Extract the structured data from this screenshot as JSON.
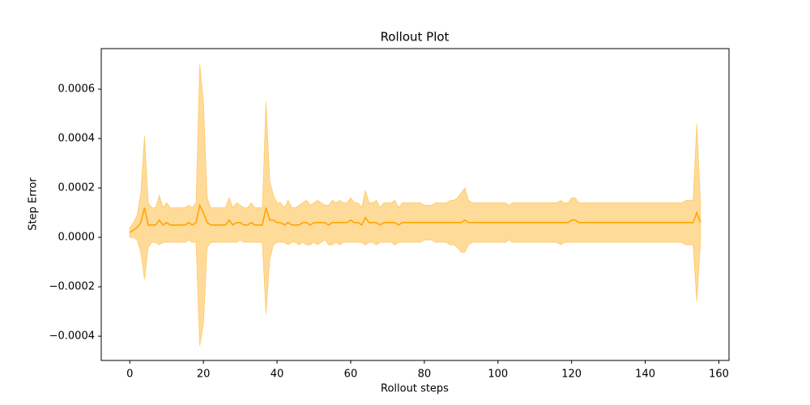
{
  "chart_data": {
    "type": "line",
    "title": "Rollout Plot",
    "xlabel": "Rollout steps",
    "ylabel": "Step Error",
    "color": "#ffa500",
    "band_alpha": 0.4,
    "x": [
      0,
      1,
      2,
      3,
      4,
      5,
      6,
      7,
      8,
      9,
      10,
      11,
      12,
      13,
      14,
      15,
      16,
      17,
      18,
      19,
      20,
      21,
      22,
      23,
      24,
      25,
      26,
      27,
      28,
      29,
      30,
      31,
      32,
      33,
      34,
      35,
      36,
      37,
      38,
      39,
      40,
      41,
      42,
      43,
      44,
      45,
      46,
      47,
      48,
      49,
      50,
      51,
      52,
      53,
      54,
      55,
      56,
      57,
      58,
      59,
      60,
      61,
      62,
      63,
      64,
      65,
      66,
      67,
      68,
      69,
      70,
      71,
      72,
      73,
      74,
      75,
      76,
      77,
      78,
      79,
      80,
      81,
      82,
      83,
      84,
      85,
      86,
      87,
      88,
      89,
      90,
      91,
      92,
      93,
      94,
      95,
      96,
      97,
      98,
      99,
      100,
      101,
      102,
      103,
      104,
      105,
      106,
      107,
      108,
      109,
      110,
      111,
      112,
      113,
      114,
      115,
      116,
      117,
      118,
      119,
      120,
      121,
      122,
      123,
      124,
      125,
      126,
      127,
      128,
      129,
      130,
      131,
      132,
      133,
      134,
      135,
      136,
      137,
      138,
      139,
      140,
      141,
      142,
      143,
      144,
      145,
      146,
      147,
      148,
      149,
      150,
      151,
      152,
      153,
      154,
      155
    ],
    "values": [
      2e-05,
      3e-05,
      4e-05,
      6e-05,
      0.00012,
      5e-05,
      5e-05,
      5e-05,
      7e-05,
      5e-05,
      6e-05,
      5e-05,
      5e-05,
      5e-05,
      5e-05,
      5e-05,
      6e-05,
      5e-05,
      6e-05,
      0.00013,
      0.0001,
      6e-05,
      5e-05,
      5e-05,
      5e-05,
      5e-05,
      5e-05,
      7e-05,
      5e-05,
      6e-05,
      6e-05,
      5e-05,
      5e-05,
      6e-05,
      5e-05,
      5e-05,
      5e-05,
      0.00012,
      7e-05,
      7e-05,
      6e-05,
      6e-05,
      5e-05,
      6e-05,
      5e-05,
      5e-05,
      5e-05,
      6e-05,
      6e-05,
      5e-05,
      6e-05,
      6e-05,
      6e-05,
      6e-05,
      5e-05,
      6e-05,
      6e-05,
      6e-05,
      6e-05,
      6e-05,
      7e-05,
      6e-05,
      6e-05,
      5e-05,
      8e-05,
      6e-05,
      6e-05,
      6e-05,
      5e-05,
      6e-05,
      6e-05,
      6e-05,
      6e-05,
      5e-05,
      6e-05,
      6e-05,
      6e-05,
      6e-05,
      6e-05,
      6e-05,
      6e-05,
      6e-05,
      6e-05,
      6e-05,
      6e-05,
      6e-05,
      6e-05,
      6e-05,
      6e-05,
      6e-05,
      6e-05,
      7e-05,
      6e-05,
      6e-05,
      6e-05,
      6e-05,
      6e-05,
      6e-05,
      6e-05,
      6e-05,
      6e-05,
      6e-05,
      6e-05,
      6e-05,
      6e-05,
      6e-05,
      6e-05,
      6e-05,
      6e-05,
      6e-05,
      6e-05,
      6e-05,
      6e-05,
      6e-05,
      6e-05,
      6e-05,
      6e-05,
      6e-05,
      6e-05,
      6e-05,
      7e-05,
      7e-05,
      6e-05,
      6e-05,
      6e-05,
      6e-05,
      6e-05,
      6e-05,
      6e-05,
      6e-05,
      6e-05,
      6e-05,
      6e-05,
      6e-05,
      6e-05,
      6e-05,
      6e-05,
      6e-05,
      6e-05,
      6e-05,
      6e-05,
      6e-05,
      6e-05,
      6e-05,
      6e-05,
      6e-05,
      6e-05,
      6e-05,
      6e-05,
      6e-05,
      6e-05,
      6e-05,
      6e-05,
      6e-05,
      0.0001,
      6e-05
    ],
    "std": [
      2e-05,
      3e-05,
      5e-05,
      0.00012,
      0.00029,
      9e-05,
      7e-05,
      7e-05,
      0.0001,
      7e-05,
      8e-05,
      7e-05,
      7e-05,
      7e-05,
      7e-05,
      7e-05,
      7e-05,
      7e-05,
      8e-05,
      0.00057,
      0.00045,
      0.0001,
      7e-05,
      7e-05,
      7e-05,
      7e-05,
      7e-05,
      9e-05,
      7e-05,
      8e-05,
      7e-05,
      7e-05,
      7e-05,
      8e-05,
      7e-05,
      7e-05,
      7e-05,
      0.00043,
      0.00016,
      0.0001,
      8e-05,
      8e-05,
      7e-05,
      9e-05,
      7e-05,
      7e-05,
      8e-05,
      8e-05,
      9e-05,
      8e-05,
      8e-05,
      9e-05,
      8e-05,
      7e-05,
      8e-05,
      9e-05,
      8e-05,
      9e-05,
      8e-05,
      8e-05,
      9e-05,
      8e-05,
      8e-05,
      7e-05,
      0.00011,
      8e-05,
      8e-05,
      9e-05,
      7e-05,
      8e-05,
      8e-05,
      8e-05,
      9e-05,
      7e-05,
      8e-05,
      8e-05,
      8e-05,
      8e-05,
      8e-05,
      8e-05,
      7e-05,
      7e-05,
      7e-05,
      8e-05,
      8e-05,
      8e-05,
      8e-05,
      9e-05,
      9e-05,
      0.0001,
      0.00012,
      0.00013,
      9e-05,
      8e-05,
      8e-05,
      8e-05,
      8e-05,
      8e-05,
      8e-05,
      8e-05,
      8e-05,
      8e-05,
      8e-05,
      7e-05,
      8e-05,
      8e-05,
      8e-05,
      8e-05,
      8e-05,
      8e-05,
      8e-05,
      8e-05,
      8e-05,
      8e-05,
      8e-05,
      8e-05,
      8e-05,
      9e-05,
      8e-05,
      8e-05,
      9e-05,
      9e-05,
      8e-05,
      8e-05,
      8e-05,
      8e-05,
      8e-05,
      8e-05,
      8e-05,
      8e-05,
      8e-05,
      8e-05,
      8e-05,
      8e-05,
      8e-05,
      8e-05,
      8e-05,
      8e-05,
      8e-05,
      8e-05,
      8e-05,
      8e-05,
      8e-05,
      8e-05,
      8e-05,
      8e-05,
      8e-05,
      8e-05,
      8e-05,
      8e-05,
      8e-05,
      9e-05,
      9e-05,
      9e-05,
      0.00036,
      8e-05
    ],
    "xlim": [
      -7.75,
      162.75
    ],
    "xticks": [
      0,
      20,
      40,
      60,
      80,
      100,
      120,
      140,
      160
    ],
    "ylim": [
      -0.000498,
      0.000764
    ],
    "yticks": [
      {
        "value": -0.0004,
        "label": "−0.0004"
      },
      {
        "value": -0.0002,
        "label": "−0.0002"
      },
      {
        "value": 0,
        "label": "0.0000"
      },
      {
        "value": 0.0002,
        "label": "0.0002"
      },
      {
        "value": 0.0004,
        "label": "0.0004"
      },
      {
        "value": 0.0006,
        "label": "0.0006"
      }
    ]
  }
}
